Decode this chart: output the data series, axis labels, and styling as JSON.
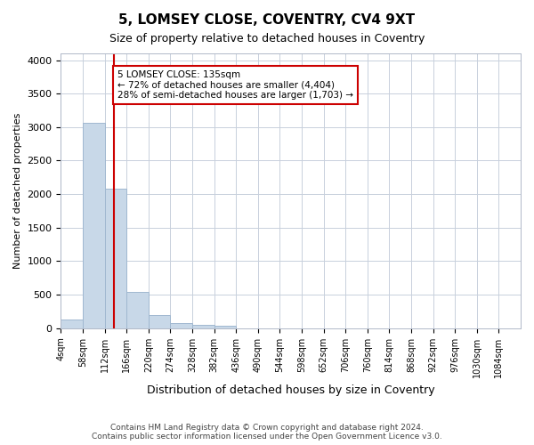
{
  "title": "5, LOMSEY CLOSE, COVENTRY, CV4 9XT",
  "subtitle": "Size of property relative to detached houses in Coventry",
  "xlabel": "Distribution of detached houses by size in Coventry",
  "ylabel": "Number of detached properties",
  "footer_line1": "Contains HM Land Registry data © Crown copyright and database right 2024.",
  "footer_line2": "Contains public sector information licensed under the Open Government Licence v3.0.",
  "bar_color": "#c8d8e8",
  "bar_edge_color": "#a0b8d0",
  "grid_color": "#c8d0dc",
  "vline_color": "#cc0000",
  "annotation_box_color": "#cc0000",
  "annotation_text": "5 LOMSEY CLOSE: 135sqm\n← 72% of detached houses are smaller (4,404)\n28% of semi-detached houses are larger (1,703) →",
  "vline_x": 135,
  "categories": [
    "4sqm",
    "58sqm",
    "112sqm",
    "166sqm",
    "220sqm",
    "274sqm",
    "328sqm",
    "382sqm",
    "436sqm",
    "490sqm",
    "544sqm",
    "598sqm",
    "652sqm",
    "706sqm",
    "760sqm",
    "814sqm",
    "868sqm",
    "922sqm",
    "976sqm",
    "1030sqm",
    "1084sqm"
  ],
  "bin_edges": [
    4,
    58,
    112,
    166,
    220,
    274,
    328,
    382,
    436,
    490,
    544,
    598,
    652,
    706,
    760,
    814,
    868,
    922,
    976,
    1030,
    1084,
    1138
  ],
  "bar_heights": [
    130,
    3060,
    2080,
    540,
    190,
    80,
    50,
    40,
    0,
    0,
    0,
    0,
    0,
    0,
    0,
    0,
    0,
    0,
    0,
    0,
    0
  ],
  "ylim": [
    0,
    4100
  ],
  "yticks": [
    0,
    500,
    1000,
    1500,
    2000,
    2500,
    3000,
    3500,
    4000
  ]
}
